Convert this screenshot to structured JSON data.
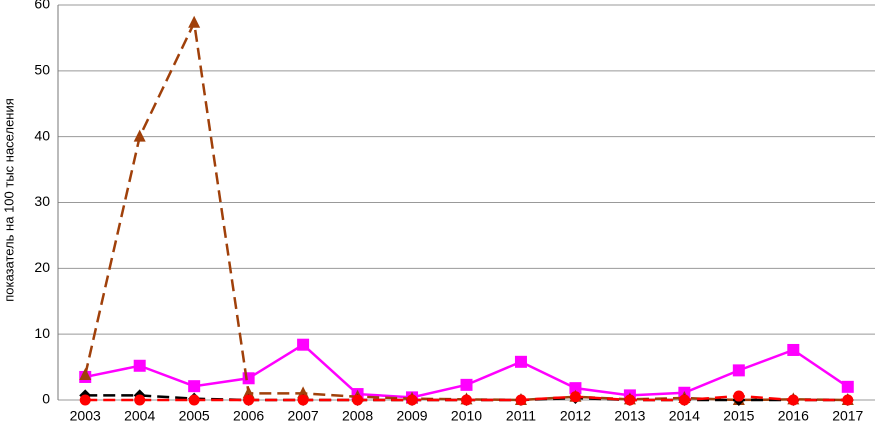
{
  "chart_data": {
    "type": "line",
    "y_label": "показатель на 100 тыс населения",
    "categories": [
      "2003",
      "2004",
      "2005",
      "2006",
      "2007",
      "2008",
      "2009",
      "2010",
      "2011",
      "2012",
      "2013",
      "2014",
      "2015",
      "2016",
      "2017"
    ],
    "series": [
      {
        "color": "#ff00ff",
        "marker": "square",
        "dash": "solid",
        "values": [
          3.5,
          5.2,
          2.1,
          3.3,
          8.4,
          0.9,
          0.4,
          2.3,
          5.8,
          1.8,
          0.7,
          1.1,
          4.5,
          7.6,
          2.0
        ]
      },
      {
        "color": "#a0400a",
        "marker": "triangle",
        "dash": "dashed",
        "values": [
          3.8,
          40,
          57.3,
          1.0,
          1.0,
          0.5,
          0.2,
          0.1,
          0,
          0.5,
          0.1,
          0.3,
          0,
          0.1,
          0
        ]
      },
      {
        "color": "#000000",
        "marker": "diamond",
        "dash": "dashed",
        "values": [
          0.7,
          0.7,
          0.2,
          0,
          0,
          0,
          0,
          0,
          0,
          0.3,
          0,
          0,
          0,
          0,
          0
        ]
      },
      {
        "color": "#ff0000",
        "marker": "circle",
        "dash": "dashed",
        "values": [
          0,
          0,
          0,
          0,
          0,
          0,
          0,
          0,
          0,
          0.5,
          0,
          0,
          0.6,
          0,
          0
        ]
      }
    ],
    "ylim": [
      0,
      60
    ],
    "yticks": [
      0,
      10,
      20,
      30,
      40,
      50,
      60
    ],
    "grid": true
  }
}
